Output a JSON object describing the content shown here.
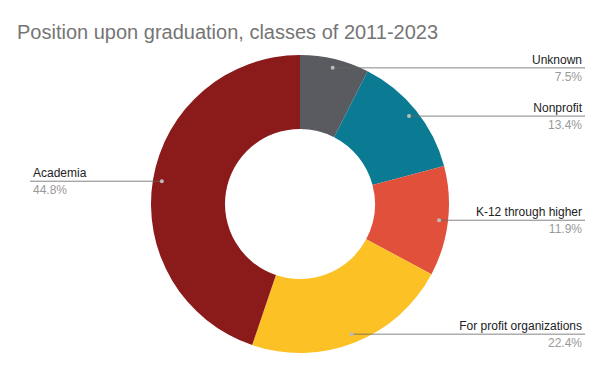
{
  "chart_data": {
    "type": "donut",
    "title": "Position upon graduation, classes of 2011-2023",
    "categories": [
      "Unknown",
      "Nonprofit",
      "K-12 through higher",
      "For profit organizations",
      "Academia"
    ],
    "values": [
      7.5,
      13.4,
      11.9,
      22.4,
      44.8
    ],
    "value_labels": [
      "7.5%",
      "13.4%",
      "11.9%",
      "22.4%",
      "44.8%"
    ],
    "colors": [
      "#595b60",
      "#0a7b93",
      "#e0503a",
      "#fcc124",
      "#8b1a1a"
    ],
    "data_labels": true
  }
}
